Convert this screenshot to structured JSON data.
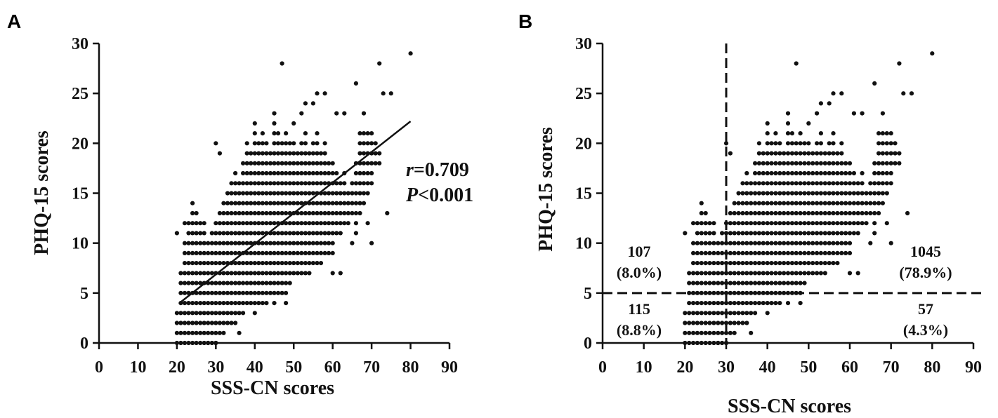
{
  "chart_data": [
    {
      "panel": "A",
      "type": "scatter",
      "xlabel": "SSS-CN scores",
      "ylabel": "PHQ-15 scores",
      "xlim": [
        0,
        90
      ],
      "ylim": [
        0,
        30
      ],
      "xticks": [
        0,
        10,
        20,
        30,
        40,
        50,
        60,
        70,
        80,
        90
      ],
      "yticks": [
        0,
        5,
        10,
        15,
        20,
        25,
        30
      ],
      "grid": false,
      "regression_line": {
        "x": [
          21,
          80
        ],
        "y": [
          4.1,
          22.2
        ]
      },
      "annotation": {
        "r_symbol": "r",
        "r_value": "=0.709",
        "p_symbol": "P",
        "p_value": "<0.001"
      },
      "outliers": [
        [
          47,
          28
        ],
        [
          72,
          28
        ],
        [
          80,
          29
        ],
        [
          66,
          26
        ],
        [
          73,
          25
        ],
        [
          75,
          25
        ],
        [
          53,
          24
        ],
        [
          55,
          24
        ],
        [
          56,
          25
        ],
        [
          58,
          25
        ],
        [
          45,
          23
        ],
        [
          50,
          22
        ],
        [
          52,
          23
        ],
        [
          61,
          23
        ],
        [
          63,
          23
        ],
        [
          68,
          23
        ],
        [
          30,
          20
        ],
        [
          31,
          19
        ],
        [
          74,
          13
        ],
        [
          70,
          10
        ],
        [
          65,
          10
        ],
        [
          69,
          12
        ],
        [
          60,
          7
        ],
        [
          62,
          7
        ],
        [
          43,
          4
        ],
        [
          45,
          4
        ],
        [
          48,
          4
        ],
        [
          22,
          12
        ],
        [
          20,
          11
        ],
        [
          24,
          14
        ],
        [
          36,
          1
        ],
        [
          28,
          0
        ],
        [
          30,
          0
        ]
      ],
      "density": [
        [
          20,
          0,
          3
        ],
        [
          21,
          0,
          7
        ],
        [
          22,
          0,
          10
        ],
        [
          23,
          0,
          12
        ],
        [
          24,
          0,
          13
        ],
        [
          25,
          0,
          13
        ],
        [
          26,
          0,
          12
        ],
        [
          27,
          0,
          12
        ],
        [
          28,
          0,
          10
        ],
        [
          29,
          0,
          11
        ],
        [
          30,
          0,
          12
        ],
        [
          31,
          1,
          13
        ],
        [
          32,
          1,
          14
        ],
        [
          33,
          2,
          15
        ],
        [
          34,
          2,
          16
        ],
        [
          35,
          2,
          17
        ],
        [
          36,
          3,
          16
        ],
        [
          37,
          3,
          18
        ],
        [
          38,
          4,
          20
        ],
        [
          39,
          4,
          19
        ],
        [
          40,
          3,
          22
        ],
        [
          41,
          4,
          20
        ],
        [
          42,
          4,
          21
        ],
        [
          43,
          5,
          20
        ],
        [
          44,
          5,
          19
        ],
        [
          45,
          5,
          22
        ],
        [
          46,
          5,
          21
        ],
        [
          47,
          5,
          20
        ],
        [
          48,
          5,
          21
        ],
        [
          49,
          6,
          20
        ],
        [
          50,
          7,
          20
        ],
        [
          51,
          7,
          19
        ],
        [
          52,
          7,
          20
        ],
        [
          53,
          7,
          21
        ],
        [
          54,
          7,
          19
        ],
        [
          55,
          8,
          20
        ],
        [
          56,
          8,
          21
        ],
        [
          57,
          8,
          19
        ],
        [
          58,
          9,
          20
        ],
        [
          59,
          9,
          18
        ],
        [
          60,
          9,
          18
        ],
        [
          61,
          11,
          17
        ],
        [
          62,
          11,
          16
        ],
        [
          63,
          12,
          17
        ],
        [
          64,
          12,
          15
        ],
        [
          65,
          13,
          16
        ],
        [
          66,
          11,
          18
        ],
        [
          67,
          13,
          21
        ],
        [
          68,
          14,
          21
        ],
        [
          69,
          15,
          21
        ],
        [
          70,
          16,
          21
        ],
        [
          71,
          18,
          20
        ],
        [
          72,
          18,
          19
        ]
      ]
    },
    {
      "panel": "B",
      "type": "scatter",
      "xlabel": "SSS-CN scores",
      "ylabel": "PHQ-15 scores",
      "xlim": [
        0,
        90
      ],
      "ylim": [
        0,
        30
      ],
      "xticks": [
        0,
        10,
        20,
        30,
        40,
        50,
        60,
        70,
        80,
        90
      ],
      "yticks": [
        0,
        5,
        10,
        15,
        20,
        25,
        30
      ],
      "grid": false,
      "cutoff_lines": {
        "x": 30,
        "y": 5,
        "style": "dashed"
      },
      "quadrants": [
        {
          "position": "upper-left",
          "count": "107",
          "percent": "(8.0%)"
        },
        {
          "position": "lower-left",
          "count": "115",
          "percent": "(8.8%)"
        },
        {
          "position": "upper-right",
          "count": "1045",
          "percent": "(78.9%)"
        },
        {
          "position": "lower-right",
          "count": "57",
          "percent": "(4.3%)"
        }
      ]
    }
  ],
  "panels": {
    "a_label": "A",
    "b_label": "B"
  }
}
